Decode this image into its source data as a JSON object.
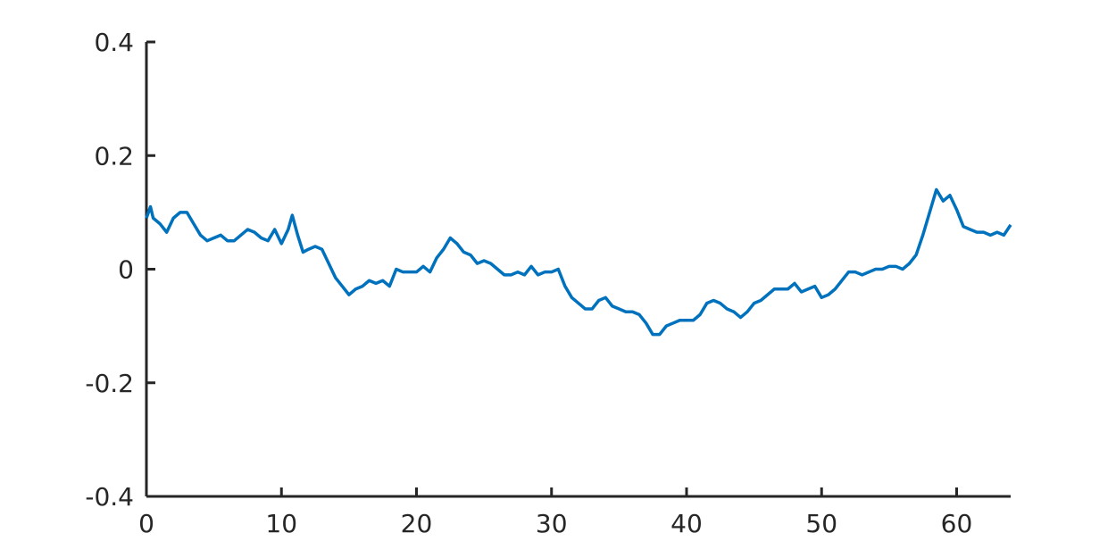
{
  "chart_data": {
    "type": "line",
    "x": [
      0,
      0.3,
      0.5,
      1,
      1.5,
      2,
      2.5,
      3,
      3.5,
      4,
      4.5,
      5,
      5.5,
      6,
      6.5,
      7,
      7.5,
      8,
      8.5,
      9,
      9.5,
      10,
      10.5,
      10.8,
      11.2,
      11.6,
      12,
      12.5,
      13,
      13.5,
      14,
      14.5,
      15,
      15.5,
      16,
      16.5,
      17,
      17.5,
      18,
      18.5,
      19,
      19.5,
      20,
      20.5,
      21,
      21.5,
      22,
      22.5,
      23,
      23.5,
      24,
      24.5,
      25,
      25.5,
      26,
      26.5,
      27,
      27.5,
      28,
      28.5,
      29,
      29.5,
      30,
      30.5,
      31,
      31.5,
      32,
      32.5,
      33,
      33.5,
      34,
      34.5,
      35,
      35.5,
      36,
      36.5,
      37,
      37.5,
      38,
      38.5,
      39,
      39.5,
      40,
      40.5,
      41,
      41.5,
      42,
      42.5,
      43,
      43.5,
      44,
      44.5,
      45,
      45.5,
      46,
      46.5,
      47,
      47.5,
      48,
      48.5,
      49,
      49.5,
      50,
      50.5,
      51,
      51.5,
      52,
      52.5,
      53,
      53.5,
      54,
      54.5,
      55,
      55.5,
      56,
      56.5,
      57,
      57.5,
      58,
      58.5,
      59,
      59.5,
      60,
      60.5,
      61,
      61.5,
      62,
      62.5,
      63,
      63.5,
      64
    ],
    "series": [
      {
        "color": "#0072bd",
        "values": [
          0.09,
          0.11,
          0.09,
          0.08,
          0.065,
          0.09,
          0.1,
          0.1,
          0.08,
          0.06,
          0.05,
          0.055,
          0.06,
          0.05,
          0.05,
          0.06,
          0.07,
          0.065,
          0.055,
          0.05,
          0.07,
          0.045,
          0.07,
          0.095,
          0.06,
          0.03,
          0.035,
          0.04,
          0.035,
          0.01,
          -0.015,
          -0.03,
          -0.045,
          -0.035,
          -0.03,
          -0.02,
          -0.025,
          -0.02,
          -0.03,
          0.0,
          -0.005,
          -0.005,
          -0.005,
          0.005,
          -0.005,
          0.02,
          0.035,
          0.055,
          0.045,
          0.03,
          0.025,
          0.01,
          0.015,
          0.01,
          0.0,
          -0.01,
          -0.01,
          -0.005,
          -0.01,
          0.005,
          -0.01,
          -0.005,
          -0.005,
          0.0,
          -0.03,
          -0.05,
          -0.06,
          -0.07,
          -0.07,
          -0.055,
          -0.05,
          -0.065,
          -0.07,
          -0.075,
          -0.075,
          -0.08,
          -0.095,
          -0.115,
          -0.115,
          -0.1,
          -0.095,
          -0.09,
          -0.09,
          -0.09,
          -0.08,
          -0.06,
          -0.055,
          -0.06,
          -0.07,
          -0.075,
          -0.085,
          -0.075,
          -0.06,
          -0.055,
          -0.045,
          -0.035,
          -0.035,
          -0.035,
          -0.025,
          -0.04,
          -0.035,
          -0.03,
          -0.05,
          -0.045,
          -0.035,
          -0.02,
          -0.005,
          -0.005,
          -0.01,
          -0.005,
          0.0,
          0.0,
          0.005,
          0.005,
          0.0,
          0.01,
          0.025,
          0.06,
          0.1,
          0.14,
          0.12,
          0.13,
          0.105,
          0.075,
          0.07,
          0.065,
          0.065,
          0.06,
          0.065,
          0.06,
          0.078
        ]
      }
    ],
    "xlim": [
      0,
      64
    ],
    "xticks": [
      0,
      10,
      20,
      30,
      40,
      50,
      60
    ],
    "ylim": [
      -0.4,
      0.4
    ],
    "yticks": [
      -0.4,
      -0.2,
      0,
      0.2,
      0.4
    ]
  }
}
